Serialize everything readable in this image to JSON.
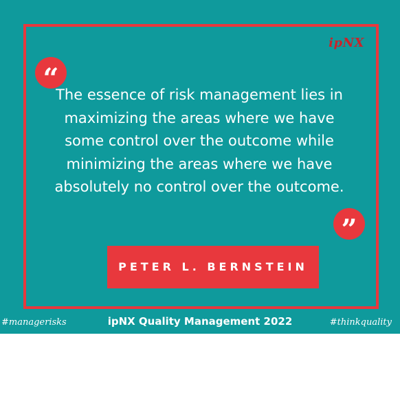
{
  "logo": {
    "text": "ipNX"
  },
  "quote": {
    "open_mark": "“",
    "close_mark": "”",
    "text": "The essence of risk management lies in maximizing the areas where we have some control over the outcome while minimizing the areas where we have absolutely no control over the outcome."
  },
  "author": "PETER L. BERNSTEIN",
  "footer": {
    "left_tag": "#managerisks",
    "title": "ipNX Quality Management 2022",
    "right_tag": "#thinkquality"
  },
  "colors": {
    "background": "#0f9a9c",
    "accent": "#e8383d",
    "text": "#ffffff"
  }
}
